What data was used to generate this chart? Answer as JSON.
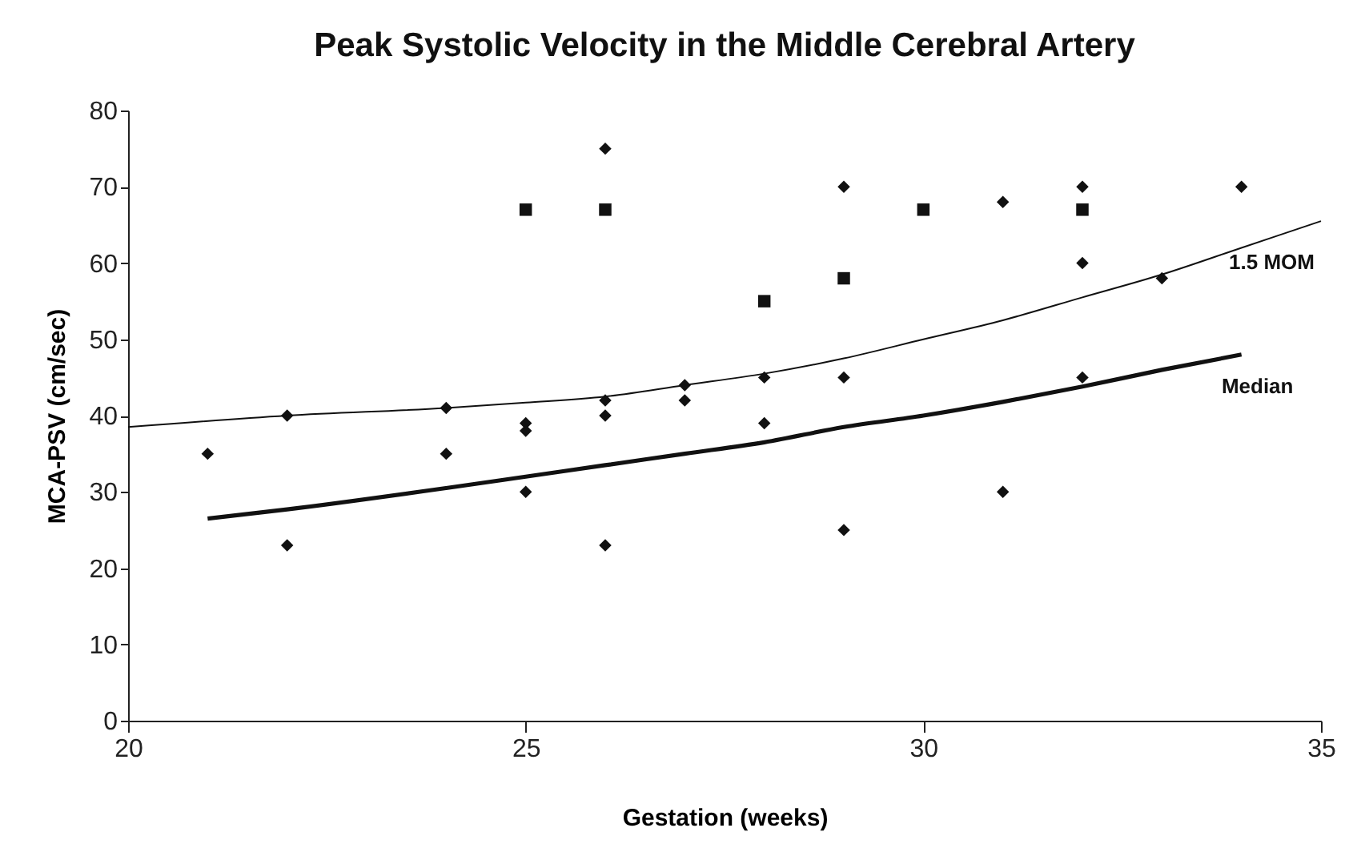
{
  "chart_data": {
    "type": "scatter",
    "title": "Peak Systolic Velocity in the Middle Cerebral Artery",
    "xlabel": "Gestation (weeks)",
    "ylabel": "MCA-PSV (cm/sec)",
    "xlim": [
      20,
      35
    ],
    "xticks": [
      20,
      25,
      30,
      35
    ],
    "ylim": [
      0,
      80
    ],
    "yticks": [
      0,
      10,
      20,
      30,
      40,
      50,
      60,
      70,
      80
    ],
    "series": [
      {
        "marker": "diamond",
        "color": "#111111",
        "x": [
          21,
          22,
          22,
          24,
          24,
          25,
          25,
          25,
          26,
          26,
          26,
          26,
          27,
          27,
          28,
          28,
          29,
          29,
          29,
          31,
          31,
          32,
          32,
          32,
          33,
          34
        ],
        "values": [
          35,
          40,
          23,
          41,
          35,
          39,
          38,
          30,
          75,
          42,
          40,
          23,
          44,
          42,
          45,
          39,
          70,
          45,
          25,
          68,
          30,
          70,
          60,
          45,
          58,
          70
        ]
      },
      {
        "marker": "square",
        "color": "#111111",
        "x": [
          25,
          26,
          28,
          29,
          30,
          32
        ],
        "values": [
          67,
          67,
          55,
          58,
          67,
          67
        ]
      },
      {
        "type": "line",
        "name": "1.5 MOM",
        "color": "#111111",
        "x": [
          20,
          22,
          24,
          25,
          26,
          27,
          28,
          29,
          30,
          31,
          32,
          33,
          34,
          35
        ],
        "values": [
          38.5,
          40,
          41,
          41.7,
          42.5,
          44,
          45.5,
          47.5,
          50,
          52.5,
          55.5,
          58.5,
          62,
          65.5
        ]
      },
      {
        "type": "line",
        "name": "Median",
        "color": "#111111",
        "x": [
          21,
          22,
          24,
          25,
          26,
          27,
          28,
          29,
          30,
          31,
          32,
          33,
          34
        ],
        "values": [
          26.5,
          27.7,
          30.5,
          32,
          33.5,
          35,
          36.5,
          38.5,
          40,
          41.8,
          43.8,
          46,
          48
        ]
      }
    ]
  }
}
